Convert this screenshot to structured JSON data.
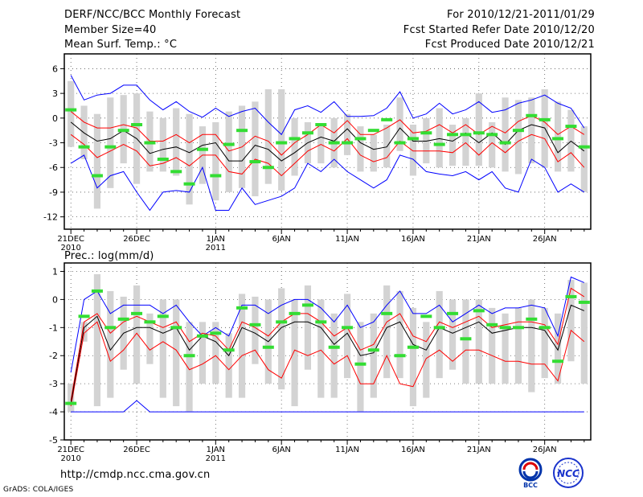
{
  "header": {
    "left": [
      "DERF/NCC/BCC Monthly Forecast",
      "Member Size=40",
      "Mean Surf. Temp.: °C"
    ],
    "right": [
      "For 2010/12/21-2011/01/29",
      "Fcst Started Refer Date 2010/12/20",
      "Fcst Produced Date 2010/12/21"
    ]
  },
  "footer": {
    "url": "http://cmdp.ncc.cma.gov.cn",
    "credit": "GrADS: COLA/IGES"
  },
  "logos": {
    "bcc_text": "BCC",
    "ncc_text": "NCC"
  },
  "colors": {
    "box": "#d3d3d3",
    "max": "#0000ff",
    "min": "#0000ff",
    "upper": "#ff0000",
    "lower": "#ff0000",
    "mean": "#000000",
    "obs": "#33dd33",
    "grid": "#555555"
  },
  "chart_data": [
    {
      "type": "box-line",
      "title": "",
      "ylabel": "Mean Surf. Temp.: °C",
      "ylim": [
        -13.5,
        7.8
      ],
      "yticks": [
        6,
        3,
        0,
        -3,
        -6,
        -9,
        -12
      ],
      "xlim": [
        0.5,
        40.5
      ],
      "xticks": [
        {
          "day": 1,
          "label": "21DEC",
          "sub": "2010"
        },
        {
          "day": 6,
          "label": "26DEC",
          "sub": ""
        },
        {
          "day": 12,
          "label": "1JAN",
          "sub": "2011"
        },
        {
          "day": 17,
          "label": "6JAN",
          "sub": ""
        },
        {
          "day": 22,
          "label": "11JAN",
          "sub": ""
        },
        {
          "day": 27,
          "label": "16JAN",
          "sub": ""
        },
        {
          "day": 32,
          "label": "21JAN",
          "sub": ""
        },
        {
          "day": 37,
          "label": "26JAN",
          "sub": ""
        }
      ],
      "grid_y": [
        6,
        3,
        0,
        -3,
        -6,
        -9,
        -12
      ],
      "series": {
        "max": [
          5.2,
          2.2,
          2.8,
          3.0,
          4.0,
          4.0,
          2.2,
          1.0,
          2.0,
          0.8,
          0.1,
          1.2,
          0.2,
          0.8,
          1.2,
          -0.5,
          -2.0,
          1.0,
          1.5,
          0.7,
          2.0,
          0.2,
          0.2,
          0.3,
          1.2,
          3.2,
          0.0,
          0.5,
          1.8,
          0.5,
          1.0,
          2.0,
          0.7,
          1.0,
          1.8,
          2.2,
          2.8,
          1.8,
          1.2,
          -1.2
        ],
        "upper": [
          0.8,
          -0.5,
          -1.2,
          -1.2,
          -0.8,
          -1.2,
          -2.8,
          -2.8,
          -2.0,
          -3.0,
          -2.0,
          -2.0,
          -4.0,
          -3.5,
          -2.2,
          -2.8,
          -4.5,
          -3.0,
          -2.0,
          -0.8,
          -1.8,
          -0.3,
          -2.0,
          -2.0,
          -1.2,
          -0.2,
          -1.8,
          -1.6,
          -0.8,
          -1.8,
          -0.8,
          -2.0,
          -1.0,
          -1.8,
          -0.4,
          0.3,
          -0.5,
          -2.0,
          -1.0,
          -2.0
        ],
        "mean": [
          -0.5,
          -1.8,
          -2.8,
          -2.5,
          -1.5,
          -2.5,
          -4.3,
          -3.8,
          -3.5,
          -4.2,
          -3.3,
          -3.0,
          -5.2,
          -5.2,
          -3.3,
          -3.8,
          -5.2,
          -4.2,
          -3.0,
          -2.3,
          -2.8,
          -1.3,
          -3.0,
          -3.8,
          -3.5,
          -1.2,
          -2.8,
          -2.8,
          -2.5,
          -2.8,
          -1.8,
          -3.0,
          -1.8,
          -3.2,
          -1.5,
          -0.8,
          -1.2,
          -4.2,
          -2.8,
          -4.0
        ],
        "lower": [
          -2.0,
          -3.2,
          -4.8,
          -4.0,
          -3.2,
          -4.0,
          -5.8,
          -5.5,
          -4.8,
          -5.8,
          -4.5,
          -4.5,
          -6.5,
          -6.8,
          -5.0,
          -5.5,
          -7.0,
          -5.5,
          -4.0,
          -3.2,
          -4.0,
          -2.5,
          -4.5,
          -5.3,
          -4.8,
          -2.8,
          -4.0,
          -4.0,
          -4.0,
          -4.2,
          -3.0,
          -4.5,
          -3.0,
          -4.2,
          -2.8,
          -2.0,
          -2.5,
          -5.3,
          -4.2,
          -6.0
        ],
        "min": [
          -5.5,
          -4.5,
          -8.5,
          -7.0,
          -6.5,
          -9.0,
          -11.2,
          -9.0,
          -8.8,
          -9.0,
          -6.0,
          -11.2,
          -11.2,
          -8.5,
          -10.5,
          -10.0,
          -9.5,
          -8.5,
          -5.5,
          -6.5,
          -5.0,
          -6.5,
          -7.5,
          -8.5,
          -7.5,
          -4.5,
          -5.0,
          -6.5,
          -6.8,
          -7.0,
          -6.5,
          -7.5,
          -6.5,
          -8.5,
          -9.0,
          -5.0,
          -6.0,
          -9.0,
          -8.0,
          -9.0
        ],
        "obs": [
          1.0,
          -3.5,
          -7.0,
          -3.5,
          -1.5,
          -0.8,
          -3.0,
          -5.0,
          -6.5,
          -8.0,
          -3.8,
          -7.0,
          -3.2,
          -1.5,
          -5.3,
          -6.0,
          -3.0,
          -2.5,
          -1.8,
          -0.8,
          -3.0,
          -3.0,
          -2.5,
          -1.5,
          -0.2,
          -3.0,
          -2.5,
          -1.8,
          -3.2,
          -2.0,
          -2.0,
          -1.8,
          -2.0,
          -3.0,
          -1.5,
          0.3,
          -0.2,
          -2.5,
          -1.0,
          -3.5
        ],
        "box_top": [
          4.5,
          1.5,
          0.5,
          2.5,
          2.8,
          3.0,
          0.8,
          0.0,
          1.2,
          0.5,
          -1.0,
          -0.5,
          0.8,
          1.5,
          2.0,
          3.5,
          3.5,
          0.0,
          -0.5,
          -1.0,
          0.0,
          0.5,
          -1.0,
          -2.0,
          -0.8,
          2.5,
          -0.8,
          0.0,
          1.2,
          -0.8,
          0.0,
          3.0,
          -0.5,
          2.5,
          2.2,
          2.5,
          3.5,
          2.0,
          1.0,
          -1.0
        ],
        "box_bottom": [
          -3.5,
          -5.0,
          -11.0,
          -8.5,
          -5.5,
          -8.0,
          -6.5,
          -6.5,
          -7.0,
          -10.5,
          -8.0,
          -10.0,
          -9.0,
          -8.5,
          -9.5,
          -8.0,
          -8.8,
          -7.0,
          -5.5,
          -5.5,
          -6.0,
          -4.5,
          -6.5,
          -6.5,
          -6.0,
          -4.0,
          -7.0,
          -5.5,
          -6.0,
          -5.8,
          -5.8,
          -5.8,
          -6.0,
          -6.5,
          -6.8,
          -5.5,
          -6.0,
          -6.5,
          -6.5,
          -9.0
        ]
      }
    },
    {
      "type": "box-line",
      "title": "",
      "ylabel": "Prec.: log(mm/d)",
      "ylim": [
        -5,
        1.3
      ],
      "yticks": [
        1,
        0,
        -1,
        -2,
        -3,
        -4,
        -5
      ],
      "xlim": [
        0.5,
        40.5
      ],
      "xticks": [
        {
          "day": 1,
          "label": "21DEC",
          "sub": "2010"
        },
        {
          "day": 6,
          "label": "26DEC",
          "sub": ""
        },
        {
          "day": 12,
          "label": "1JAN",
          "sub": "2011"
        },
        {
          "day": 17,
          "label": "6JAN",
          "sub": ""
        },
        {
          "day": 22,
          "label": "11JAN",
          "sub": ""
        },
        {
          "day": 27,
          "label": "16JAN",
          "sub": ""
        },
        {
          "day": 32,
          "label": "21JAN",
          "sub": ""
        },
        {
          "day": 37,
          "label": "26JAN",
          "sub": ""
        }
      ],
      "grid_y": [
        1,
        0,
        -1,
        -2,
        -3,
        -4
      ],
      "series": {
        "max": [
          -2.6,
          0.0,
          0.3,
          -0.5,
          -0.2,
          -0.2,
          -0.2,
          -0.5,
          -0.2,
          -0.8,
          -1.3,
          -1.0,
          -1.3,
          -0.2,
          -0.2,
          -0.5,
          -0.2,
          0.0,
          0.0,
          -0.3,
          -0.8,
          -0.2,
          -1.0,
          -0.8,
          -0.2,
          0.3,
          -0.5,
          -0.5,
          -0.2,
          -0.8,
          -0.5,
          -0.2,
          -0.5,
          -0.3,
          -0.3,
          -0.2,
          -0.3,
          -1.3,
          0.8,
          0.6
        ],
        "upper": [
          -3.6,
          -0.8,
          -0.5,
          -1.2,
          -0.8,
          -0.6,
          -0.8,
          -1.0,
          -0.8,
          -1.5,
          -1.2,
          -1.3,
          -1.8,
          -0.8,
          -1.0,
          -1.3,
          -0.8,
          -0.5,
          -0.5,
          -0.8,
          -1.3,
          -1.0,
          -1.8,
          -1.6,
          -0.8,
          -0.5,
          -1.3,
          -1.5,
          -0.8,
          -1.0,
          -0.8,
          -0.6,
          -1.0,
          -0.9,
          -0.8,
          -0.8,
          -0.9,
          -1.6,
          0.4,
          0.1
        ],
        "mean": [
          -3.7,
          -1.0,
          -0.6,
          -1.8,
          -1.2,
          -1.0,
          -1.0,
          -1.2,
          -1.0,
          -1.8,
          -1.3,
          -1.5,
          -2.0,
          -1.0,
          -1.2,
          -1.5,
          -1.0,
          -0.8,
          -0.8,
          -1.0,
          -1.6,
          -1.2,
          -2.0,
          -1.9,
          -1.0,
          -0.8,
          -1.6,
          -1.8,
          -1.0,
          -1.2,
          -1.0,
          -0.8,
          -1.2,
          -1.1,
          -1.0,
          -1.0,
          -1.1,
          -1.8,
          -0.2,
          -0.4
        ],
        "lower": [
          -3.8,
          -1.2,
          -0.8,
          -2.2,
          -1.8,
          -1.2,
          -1.8,
          -1.5,
          -1.8,
          -2.5,
          -2.3,
          -2.0,
          -2.5,
          -2.0,
          -1.8,
          -2.5,
          -2.8,
          -1.8,
          -2.0,
          -1.8,
          -2.3,
          -2.0,
          -3.0,
          -3.0,
          -2.0,
          -3.0,
          -3.1,
          -2.1,
          -1.8,
          -2.2,
          -1.8,
          -1.8,
          -2.0,
          -2.2,
          -2.2,
          -2.3,
          -2.3,
          -2.9,
          -1.1,
          -1.5
        ],
        "min": [
          -4.0,
          -4.0,
          -4.0,
          -4.0,
          -4.0,
          -3.6,
          -4.0,
          -4.0,
          -4.0,
          -4.0,
          -4.0,
          -4.0,
          -4.0,
          -4.0,
          -4.0,
          -4.0,
          -4.0,
          -4.0,
          -4.0,
          -4.0,
          -4.0,
          -4.0,
          -4.0,
          -4.0,
          -4.0,
          -4.0,
          -4.0,
          -4.0,
          -4.0,
          -4.0,
          -4.0,
          -4.0,
          -4.0,
          -4.0,
          -4.0,
          -4.0,
          -4.0,
          -4.0,
          -4.0,
          -4.0
        ],
        "obs": [
          -3.7,
          -0.6,
          0.3,
          -1.0,
          -0.7,
          -0.5,
          -0.8,
          -0.6,
          -1.0,
          -2.0,
          -1.3,
          -1.2,
          -1.8,
          -0.3,
          -0.9,
          -1.7,
          -0.8,
          -0.5,
          -0.2,
          -0.8,
          -1.7,
          -1.0,
          -2.3,
          -1.8,
          -0.5,
          -2.0,
          -1.7,
          -0.6,
          -1.0,
          -0.5,
          -1.4,
          -0.4,
          -0.9,
          -1.0,
          -1.0,
          -0.7,
          -1.0,
          -2.2,
          0.1,
          -0.1
        ],
        "box_top": [
          -3.0,
          -0.8,
          0.9,
          0.3,
          0.1,
          0.5,
          -0.5,
          0.0,
          0.0,
          -0.8,
          -0.8,
          -0.8,
          -1.2,
          0.2,
          0.1,
          0.0,
          0.4,
          0.0,
          0.5,
          0.0,
          -0.5,
          0.2,
          -0.8,
          -0.5,
          0.5,
          0.3,
          -0.3,
          -0.8,
          0.3,
          0.0,
          0.0,
          0.0,
          -0.3,
          -0.5,
          -0.3,
          0.0,
          -0.3,
          -0.5,
          0.7,
          0.6
        ],
        "box_bottom": [
          -4.0,
          -1.5,
          -3.8,
          -3.5,
          -2.5,
          -3.0,
          -2.3,
          -3.5,
          -3.8,
          -4.0,
          -3.0,
          -3.0,
          -3.5,
          -3.5,
          -2.3,
          -3.0,
          -3.2,
          -3.8,
          -2.5,
          -3.5,
          -3.5,
          -2.8,
          -4.0,
          -3.5,
          -2.8,
          -2.8,
          -3.8,
          -3.5,
          -2.8,
          -2.5,
          -3.0,
          -3.0,
          -3.0,
          -3.0,
          -3.0,
          -3.3,
          -2.8,
          -3.0,
          -2.2,
          -3.0
        ]
      }
    }
  ]
}
